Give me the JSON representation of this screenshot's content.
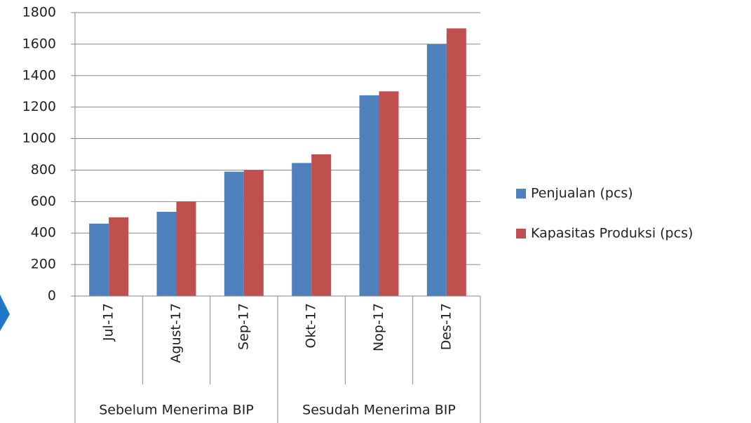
{
  "chart_data": {
    "type": "bar",
    "category_groups": [
      {
        "name": "Sebelum Menerima BIP",
        "categories": [
          "Jul-17",
          "Agust-17",
          "Sep-17"
        ]
      },
      {
        "name": "Sesudah Menerima BIP",
        "categories": [
          "Okt-17",
          "Nop-17",
          "Des-17"
        ]
      }
    ],
    "series": [
      {
        "name": "Penjualan (pcs)",
        "color": "#4f81bd",
        "values": [
          460,
          535,
          790,
          845,
          1275,
          1600
        ]
      },
      {
        "name": "Kapasitas Produksi (pcs)",
        "color": "#c0504d",
        "values": [
          500,
          600,
          800,
          900,
          1300,
          1700
        ]
      }
    ],
    "ylim": [
      0,
      1800
    ],
    "yticks": [
      0,
      200,
      400,
      600,
      800,
      1000,
      1200,
      1400,
      1600,
      1800
    ],
    "grid": true,
    "legend": "right"
  }
}
